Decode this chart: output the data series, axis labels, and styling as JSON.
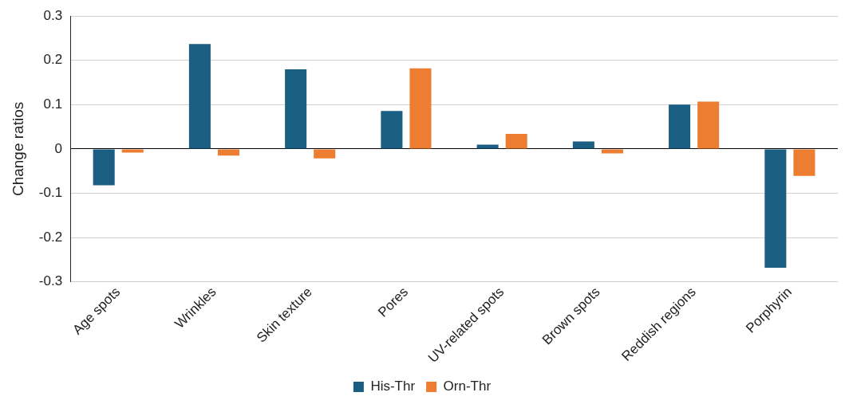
{
  "chart_data": {
    "type": "bar",
    "ylabel": "Change ratios",
    "categories": [
      "Age spots",
      "Wrinkles",
      "Skin texture",
      "Pores",
      "UV-related spots",
      "Brown spots",
      "Reddish regions",
      "Porphyrin"
    ],
    "series": [
      {
        "name": "His-Thr",
        "color": "#1a5f82",
        "values": [
          -0.082,
          0.237,
          0.18,
          0.086,
          0.01,
          0.017,
          0.1,
          -0.268
        ]
      },
      {
        "name": "Orn-Thr",
        "color": "#ed7d31",
        "values": [
          -0.008,
          -0.015,
          -0.021,
          0.182,
          0.034,
          -0.01,
          0.107,
          -0.061
        ]
      }
    ],
    "ylim": [
      -0.3,
      0.3
    ],
    "yticks": [
      -0.3,
      -0.2,
      -0.1,
      0,
      0.1,
      0.2,
      0.3
    ],
    "grid": "y",
    "legend": "bottom"
  }
}
